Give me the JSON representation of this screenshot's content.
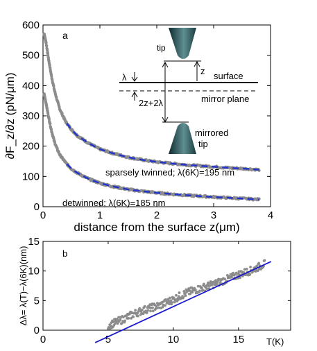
{
  "colors": {
    "data_points": "#8c8c8c",
    "fit_dashed": "#2233cc",
    "fit_line": "#1a1acc",
    "tip_dark": "#0e2b2e",
    "tip_light": "#5f8f91"
  },
  "chart_data": [
    {
      "type": "scatter",
      "panel_label": "a",
      "xlabel": "distance from the surface z(μm)",
      "ylabel": "∂F_z/∂z (pN/μm)",
      "xlim": [
        0,
        4
      ],
      "ylim": [
        0,
        600
      ],
      "xticks": [
        0,
        1,
        2,
        3,
        4
      ],
      "yticks": [
        0,
        100,
        200,
        300,
        400,
        500,
        600
      ],
      "grid": false,
      "series": [
        {
          "name": "sparsely twinned; λ(6K)=195 nm",
          "x": [
            0.02,
            0.05,
            0.08,
            0.1,
            0.15,
            0.2,
            0.25,
            0.3,
            0.4,
            0.5,
            0.6,
            0.8,
            1.0,
            1.2,
            1.5,
            1.8,
            2.0,
            2.3,
            2.6,
            3.0,
            3.3,
            3.6,
            3.8
          ],
          "y": [
            570,
            545,
            510,
            485,
            430,
            385,
            350,
            320,
            280,
            255,
            235,
            210,
            190,
            178,
            163,
            153,
            148,
            142,
            137,
            132,
            128,
            125,
            122
          ]
        },
        {
          "name": "detwinned; λ(6K)=185 nm",
          "x": [
            0.02,
            0.05,
            0.08,
            0.1,
            0.15,
            0.2,
            0.25,
            0.3,
            0.4,
            0.5,
            0.6,
            0.8,
            1.0,
            1.2,
            1.5,
            1.8,
            2.0,
            2.3,
            2.6,
            3.0,
            3.3,
            3.6,
            3.8
          ],
          "y": [
            370,
            345,
            315,
            295,
            250,
            215,
            190,
            170,
            145,
            125,
            112,
            92,
            78,
            68,
            57,
            50,
            46,
            41,
            37,
            32,
            29,
            26,
            24
          ]
        }
      ],
      "fit_start_x": 0.42,
      "annotations": {
        "tip": "tip",
        "z": "z",
        "lambda": "λ",
        "surface": "surface",
        "two_z": "2z+2λ",
        "mirror_plane": "mirror plane",
        "mirrored": "mirrored",
        "mirrored_tip": "tip"
      }
    },
    {
      "type": "scatter",
      "panel_label": "b",
      "xlabel": "T(K)",
      "ylabel": "Δλ= λ(T)−λ(6K)(nm)",
      "xlim": [
        0,
        19
      ],
      "ylim": [
        0,
        15
      ],
      "xticks": [
        0,
        5,
        10,
        15
      ],
      "yticks": [
        0,
        5,
        10,
        15
      ],
      "grid": false,
      "series": [
        {
          "name": "data",
          "x": [
            5,
            6,
            7,
            8,
            9,
            10,
            11,
            12,
            13,
            14,
            15,
            16,
            17
          ],
          "y": [
            0.8,
            1.7,
            2.8,
            3.6,
            4.2,
            5.2,
            6.3,
            7.0,
            7.7,
            8.5,
            9.4,
            10.1,
            11.2
          ]
        },
        {
          "name": "fit",
          "x": [
            4,
            17.5
          ],
          "y": [
            -2.1,
            11.6
          ]
        }
      ]
    }
  ]
}
